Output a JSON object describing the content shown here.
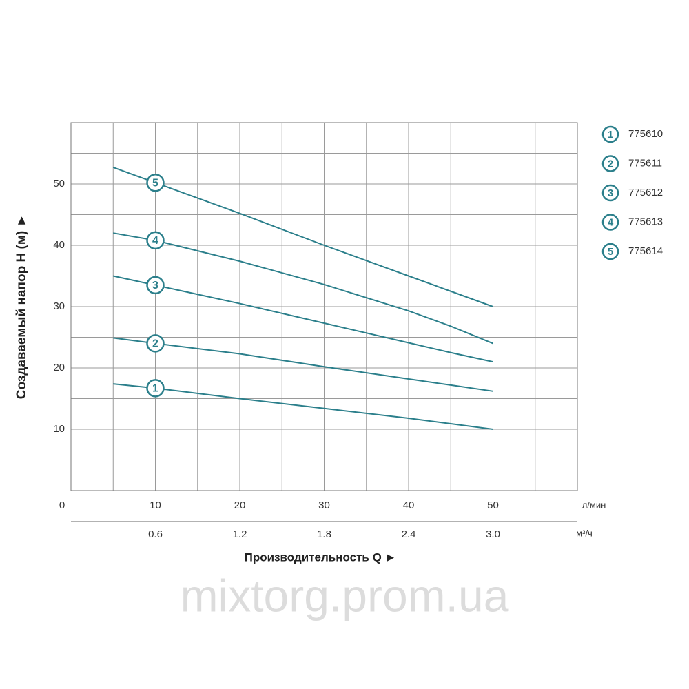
{
  "chart_data": {
    "type": "line",
    "x_label": "Производительность Q ►",
    "y_label": "Создаваемый напор Н (м) ►",
    "x_unit": "л/мин",
    "x2_unit": "м³/ч",
    "watermark": "mixtorg.prom.ua",
    "x": [
      5,
      10,
      20,
      30,
      40,
      45,
      50
    ],
    "xlim": [
      0,
      60
    ],
    "ylim": [
      0,
      60
    ],
    "xticks": [
      0,
      10,
      20,
      30,
      40,
      50
    ],
    "yticks": [
      10,
      20,
      30,
      40,
      50
    ],
    "xgrid": [
      5,
      10,
      15,
      20,
      25,
      30,
      35,
      40,
      45,
      50,
      55
    ],
    "ygrid": [
      5,
      10,
      15,
      20,
      25,
      30,
      35,
      40,
      45,
      50,
      55
    ],
    "x2lim": [
      0,
      3.6
    ],
    "x2ticks": [
      0.6,
      1.2,
      1.8,
      2.4,
      {
        "value": 3.0,
        "label": "3.0"
      }
    ],
    "grid": true,
    "color": "#2b7f8b",
    "series": [
      {
        "name": "775610",
        "label": "1",
        "values": [
          17.4,
          16.7,
          15,
          13.4,
          11.8,
          10.9,
          10
        ]
      },
      {
        "name": "775611",
        "label": "2",
        "values": [
          24.9,
          24,
          22.3,
          20.2,
          18.2,
          17.2,
          16.2
        ]
      },
      {
        "name": "775612",
        "label": "3",
        "values": [
          35,
          33.5,
          30.5,
          27.3,
          24.1,
          22.5,
          21
        ]
      },
      {
        "name": "775613",
        "label": "4",
        "values": [
          42,
          40.8,
          37.4,
          33.6,
          29.3,
          26.8,
          24
        ]
      },
      {
        "name": "775614",
        "label": "5",
        "values": [
          52.7,
          50.2,
          45.2,
          40,
          35,
          32.5,
          30
        ]
      }
    ]
  }
}
